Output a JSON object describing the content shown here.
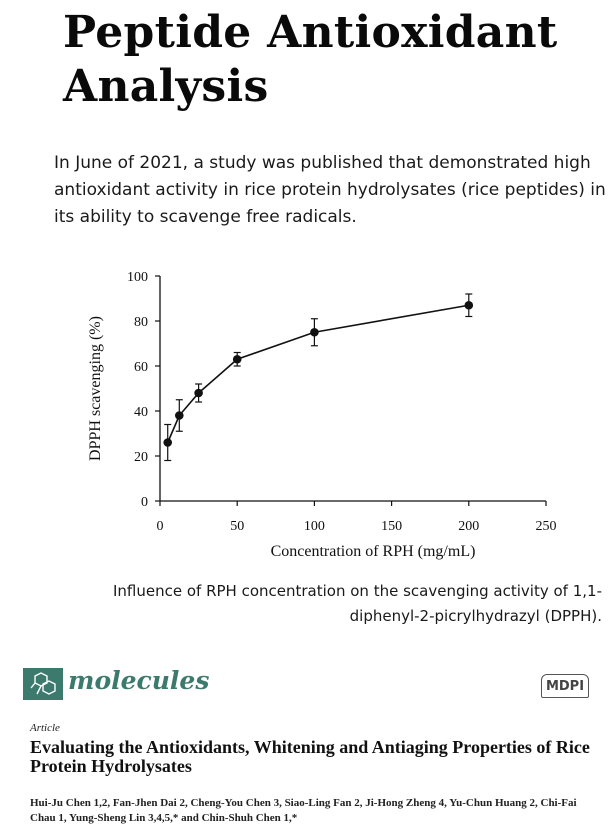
{
  "title": {
    "line1": "Peptide Antioxidant",
    "line2": "Analysis"
  },
  "intro": "In June of 2021, a study was published that demonstrated high antioxidant activity in rice protein hydrolysates (rice peptides) in its ability to scavenge free radicals.",
  "chart_data": {
    "type": "line",
    "title": "",
    "xlabel": "Concentration of RPH (mg/mL)",
    "ylabel": "DPPH scavenging (%)",
    "xlim": [
      0,
      250
    ],
    "ylim": [
      0,
      100
    ],
    "xticks": [
      0,
      50,
      100,
      150,
      200,
      250
    ],
    "yticks": [
      0,
      20,
      40,
      60,
      80,
      100
    ],
    "grid": false,
    "series": [
      {
        "name": "RPH",
        "x": [
          5,
          12.5,
          25,
          50,
          100,
          200
        ],
        "y": [
          26,
          38,
          48,
          63,
          75,
          87
        ],
        "err": [
          8,
          7,
          4,
          3,
          6,
          5
        ]
      }
    ]
  },
  "caption": "Influence of RPH concentration on the scavenging activity of 1,1-diphenyl-2-picrylhydrazyl (DPPH).",
  "paper": {
    "journal": "molecules",
    "publisher": "MDPI",
    "article_type": "Article",
    "title": "Evaluating the Antioxidants, Whitening and Antiaging Properties of Rice Protein Hydrolysates",
    "authors": "Hui-Ju Chen 1,2, Fan-Jhen Dai 2, Cheng-You Chen 3, Siao-Ling Fan 2, Ji-Hong Zheng 4, Yu-Chun Huang 2, Chi-Fai Chau 1, Yung-Sheng Lin 3,4,5,* and Chin-Shuh Chen 1,*"
  },
  "colors": {
    "journal": "#3c7a6e",
    "ink": "#111111"
  }
}
